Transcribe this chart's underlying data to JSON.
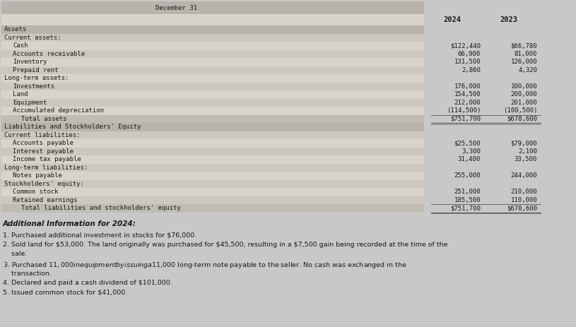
{
  "title_top": "December 31",
  "col_2024": "2024",
  "col_2023": "2023",
  "page_bg": "#c8c8c8",
  "table_bg": "#d8d4cc",
  "header_bar_bg": "#b8b4ac",
  "total_row_bg": "#c0bcb4",
  "text_color": "#1a1a1a",
  "rows": [
    {
      "label": "Assets",
      "val2024": "",
      "val2023": "",
      "indent": 0,
      "is_total": false,
      "is_section": true
    },
    {
      "label": "Current assets:",
      "val2024": "",
      "val2023": "",
      "indent": 0,
      "is_total": false,
      "is_section": false
    },
    {
      "label": "Cash",
      "val2024": "$122,440",
      "val2023": "$66,780",
      "indent": 1,
      "is_total": false,
      "is_section": false
    },
    {
      "label": "Accounts receivable",
      "val2024": "66,900",
      "val2023": "81,000",
      "indent": 1,
      "is_total": false,
      "is_section": false
    },
    {
      "label": "Inventory",
      "val2024": "131,500",
      "val2023": "126,000",
      "indent": 1,
      "is_total": false,
      "is_section": false
    },
    {
      "label": "Prepaid rent",
      "val2024": "2,860",
      "val2023": "4,320",
      "indent": 1,
      "is_total": false,
      "is_section": false
    },
    {
      "label": "Long-term assets:",
      "val2024": "",
      "val2023": "",
      "indent": 0,
      "is_total": false,
      "is_section": false
    },
    {
      "label": "Investments",
      "val2024": "176,000",
      "val2023": "100,000",
      "indent": 1,
      "is_total": false,
      "is_section": false
    },
    {
      "label": "Land",
      "val2024": "154,500",
      "val2023": "200,000",
      "indent": 1,
      "is_total": false,
      "is_section": false
    },
    {
      "label": "Equipment",
      "val2024": "212,000",
      "val2023": "201,000",
      "indent": 1,
      "is_total": false,
      "is_section": false
    },
    {
      "label": "Accumulated depreciation",
      "val2024": "(114,500)",
      "val2023": "(100,500)",
      "indent": 1,
      "is_total": false,
      "is_section": false
    },
    {
      "label": "Total assets",
      "val2024": "$751,700",
      "val2023": "$678,600",
      "indent": 2,
      "is_total": true,
      "is_section": false
    },
    {
      "label": "Liabilities and Stockholders' Equity",
      "val2024": "",
      "val2023": "",
      "indent": 0,
      "is_total": false,
      "is_section": true
    },
    {
      "label": "Current liabilities:",
      "val2024": "",
      "val2023": "",
      "indent": 0,
      "is_total": false,
      "is_section": false
    },
    {
      "label": "Accounts payable",
      "val2024": "$25,500",
      "val2023": "$79,000",
      "indent": 1,
      "is_total": false,
      "is_section": false
    },
    {
      "label": "Interest payable",
      "val2024": "3,300",
      "val2023": "2,100",
      "indent": 1,
      "is_total": false,
      "is_section": false
    },
    {
      "label": "Income tax payable",
      "val2024": "31,400",
      "val2023": "33,500",
      "indent": 1,
      "is_total": false,
      "is_section": false
    },
    {
      "label": "Long-term liabilities:",
      "val2024": "",
      "val2023": "",
      "indent": 0,
      "is_total": false,
      "is_section": false
    },
    {
      "label": "Notes payable",
      "val2024": "255,000",
      "val2023": "244,000",
      "indent": 1,
      "is_total": false,
      "is_section": false
    },
    {
      "label": "Stockholders' equity:",
      "val2024": "",
      "val2023": "",
      "indent": 0,
      "is_total": false,
      "is_section": false
    },
    {
      "label": "Common stock",
      "val2024": "251,000",
      "val2023": "210,000",
      "indent": 1,
      "is_total": false,
      "is_section": false
    },
    {
      "label": "Retained earnings",
      "val2024": "185,500",
      "val2023": "110,000",
      "indent": 1,
      "is_total": false,
      "is_section": false
    },
    {
      "label": "Total liabilities and stockholders' equity",
      "val2024": "$751,700",
      "val2023": "$678,600",
      "indent": 2,
      "is_total": true,
      "is_section": false
    }
  ],
  "additional_title": "Additional Information for 2024:",
  "additional_items": [
    "1. Purchased additional investment in stocks for $76,000.",
    "2. Sold land for $53,000. The land originally was purchased for $45,500, resulting in a $7,500 gain being recorded at the time of the",
    "    sale.",
    "3. Purchased $11,000 in equipment by issuing a $11,000 long-term note payable to the seller. No cash was exchanged in the",
    "    transaction.",
    "4. Declared and paid a cash dividend of $101,000.",
    "5. Issued common stock for $41,000."
  ]
}
